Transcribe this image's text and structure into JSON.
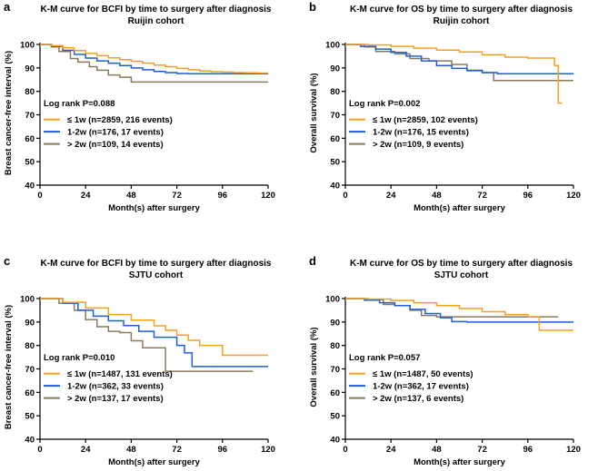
{
  "colors": {
    "le1w": "#f5a01e",
    "w1to2": "#1f5fd6",
    "gt2w": "#8a7a5e",
    "axis": "#000000"
  },
  "chart_data": [
    {
      "type": "line",
      "panel": "a",
      "title": "K-M curve for BCFI by time to surgery after diagnosis",
      "subtitle": "Ruijin cohort",
      "xlabel": "Month(s) after surgery",
      "ylabel": "Breast cancer-free interval (%)",
      "xlim": [
        0,
        120
      ],
      "ylim": [
        40,
        100
      ],
      "xticks": [
        "0",
        "24",
        "48",
        "72",
        "96",
        "120"
      ],
      "yticks": [
        "40",
        "50",
        "60",
        "70",
        "80",
        "90",
        "100"
      ],
      "stat_text": "Log rank P=0.088",
      "series": [
        {
          "name": "≤ 1w (n=2859, 216 events)",
          "color_key": "le1w",
          "x": [
            0,
            6,
            12,
            18,
            24,
            30,
            36,
            42,
            48,
            54,
            60,
            66,
            72,
            78,
            84,
            90,
            96,
            102,
            108,
            114,
            120
          ],
          "y": [
            100,
            99.5,
            98.6,
            97.4,
            96.2,
            95.2,
            94.3,
            93.5,
            92.8,
            92.0,
            91.2,
            90.5,
            89.8,
            89.2,
            88.7,
            88.4,
            88.2,
            88.0,
            87.9,
            87.8,
            87.8
          ]
        },
        {
          "name": "1-2w (n=176, 17 events)",
          "color_key": "w1to2",
          "x": [
            0,
            6,
            12,
            18,
            24,
            30,
            36,
            42,
            48,
            54,
            60,
            66,
            72,
            78,
            84,
            120
          ],
          "y": [
            100,
            99.2,
            97.5,
            95.8,
            94.2,
            93.0,
            92.0,
            91.0,
            90.0,
            89.2,
            88.5,
            88.0,
            87.6,
            87.5,
            87.5,
            87.5
          ]
        },
        {
          "name": "> 2w (n=109, 14 events)",
          "color_key": "gt2w",
          "x": [
            0,
            6,
            10,
            16,
            20,
            26,
            30,
            36,
            42,
            48,
            60,
            120
          ],
          "y": [
            100,
            99,
            97,
            94,
            92.5,
            90.5,
            89,
            87,
            86,
            84,
            84,
            84
          ]
        }
      ]
    },
    {
      "type": "line",
      "panel": "b",
      "title": "K-M curve for OS by time to surgery after diagnosis",
      "subtitle": "Ruijin cohort",
      "xlabel": "Month(s) after surgery",
      "ylabel": "Overall survival (%)",
      "xlim": [
        0,
        120
      ],
      "ylim": [
        40,
        100
      ],
      "xticks": [
        "0",
        "24",
        "48",
        "72",
        "96",
        "120"
      ],
      "yticks": [
        "40",
        "50",
        "60",
        "70",
        "80",
        "90",
        "100"
      ],
      "stat_text": "Log rank P=0.002",
      "series": [
        {
          "name": "≤ 1w (n=2859, 102 events)",
          "color_key": "le1w",
          "x": [
            0,
            12,
            24,
            36,
            48,
            60,
            72,
            84,
            96,
            108,
            110,
            112,
            114
          ],
          "y": [
            100,
            99.8,
            99.2,
            98.4,
            97.6,
            96.8,
            95.6,
            94.6,
            94.2,
            94.2,
            91,
            75,
            75
          ]
        },
        {
          "name": "1-2w (n=176, 15 events)",
          "color_key": "w1to2",
          "x": [
            0,
            8,
            16,
            24,
            32,
            40,
            48,
            56,
            64,
            72,
            80,
            120
          ],
          "y": [
            100,
            99.2,
            98,
            96.6,
            95,
            93,
            91,
            89.8,
            88.8,
            88,
            87.5,
            87.5
          ]
        },
        {
          "name": "> 2w (n=109, 9 events)",
          "color_key": "gt2w",
          "x": [
            0,
            10,
            16,
            26,
            34,
            44,
            56,
            64,
            72,
            78,
            120
          ],
          "y": [
            100,
            99,
            97,
            96,
            94,
            93,
            91.5,
            89,
            88,
            84.6,
            84.6
          ]
        }
      ]
    },
    {
      "type": "line",
      "panel": "c",
      "title": "K-M curve for BCFI by time to surgery after diagnosis",
      "subtitle": "SJTU cohort",
      "xlabel": "Month(s) after surgery",
      "ylabel": "Breast cancer-free interval (%)",
      "xlim": [
        0,
        120
      ],
      "ylim": [
        40,
        100
      ],
      "xticks": [
        "0",
        "24",
        "48",
        "72",
        "96",
        "120"
      ],
      "yticks": [
        "40",
        "50",
        "60",
        "70",
        "80",
        "90",
        "100"
      ],
      "stat_text": "Log rank P=0.010",
      "series": [
        {
          "name": "≤ 1w (n=1487, 131 events)",
          "color_key": "le1w",
          "x": [
            0,
            12,
            24,
            36,
            48,
            60,
            66,
            72,
            78,
            84,
            90,
            96,
            120
          ],
          "y": [
            100,
            98.4,
            96,
            93.2,
            90.8,
            88.4,
            86.5,
            84.4,
            82.2,
            80,
            80,
            75.8,
            75.8
          ]
        },
        {
          "name": "1-2w (n=362, 33 events)",
          "color_key": "w1to2",
          "x": [
            0,
            12,
            20,
            28,
            36,
            44,
            52,
            60,
            68,
            72,
            76,
            78,
            80,
            120
          ],
          "y": [
            100,
            98,
            95,
            92.5,
            90.5,
            88.5,
            86,
            83.5,
            83.5,
            80,
            76.8,
            76.8,
            71,
            71
          ]
        },
        {
          "name": "> 2w (n=137, 17 events)",
          "color_key": "gt2w",
          "x": [
            0,
            10,
            18,
            24,
            30,
            36,
            42,
            48,
            54,
            60,
            66,
            112
          ],
          "y": [
            100,
            98,
            95,
            91,
            88,
            86,
            85.5,
            82,
            79,
            79,
            69,
            69
          ]
        }
      ]
    },
    {
      "type": "line",
      "panel": "d",
      "title": "K-M curve for OS by time to surgery after diagnosis",
      "subtitle": "SJTU cohort",
      "xlabel": "Month(s) after surgery",
      "ylabel": "Overall survival (%)",
      "xlim": [
        0,
        120
      ],
      "ylim": [
        40,
        100
      ],
      "xticks": [
        "0",
        "24",
        "48",
        "72",
        "96",
        "120"
      ],
      "yticks": [
        "40",
        "50",
        "60",
        "70",
        "80",
        "90",
        "100"
      ],
      "stat_text": "Log rank P=0.057",
      "series": [
        {
          "name": "≤ 1w (n=1487, 50 events)",
          "color_key": "le1w",
          "x": [
            0,
            12,
            24,
            36,
            48,
            60,
            72,
            84,
            96,
            100,
            102,
            120
          ],
          "y": [
            100,
            99.8,
            99.2,
            98.2,
            97,
            95.8,
            94.4,
            93.2,
            92.2,
            92.2,
            86.5,
            86.5
          ]
        },
        {
          "name": "1-2w (n=362, 17 events)",
          "color_key": "w1to2",
          "x": [
            0,
            10,
            18,
            26,
            34,
            42,
            50,
            56,
            64,
            120
          ],
          "y": [
            100,
            99.3,
            98.2,
            97,
            95.4,
            93.6,
            91.8,
            90.2,
            90,
            90
          ]
        },
        {
          "name": "> 2w (n=137, 6 events)",
          "color_key": "gt2w",
          "x": [
            0,
            12,
            20,
            26,
            34,
            40,
            48,
            56,
            64,
            112
          ],
          "y": [
            100,
            99.5,
            97.5,
            97,
            95,
            92.8,
            92.2,
            92.2,
            92.2,
            92.2
          ]
        }
      ]
    }
  ]
}
